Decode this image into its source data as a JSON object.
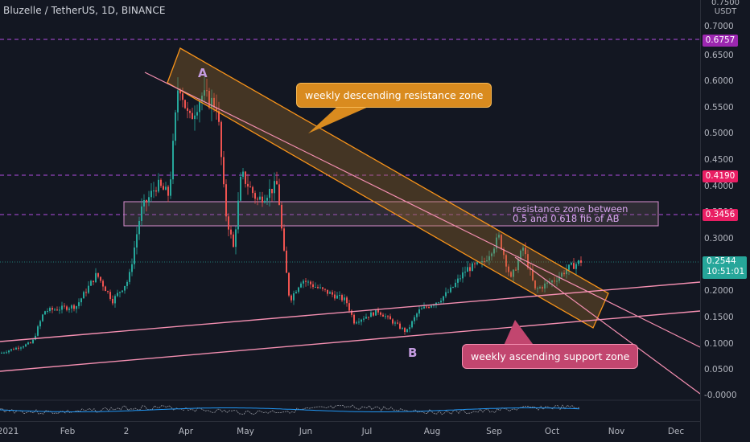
{
  "header": {
    "symbol": "Bluzelle / TetherUS, 1D, BINANCE"
  },
  "price_axis": {
    "unit_top": "0.7500",
    "unit_bottom": "USDT",
    "ticks": [
      "0.7000",
      "0.6500",
      "0.6000",
      "0.5500",
      "0.5000",
      "0.4500",
      "0.4000",
      "0.3500",
      "0.3000",
      "0.2500",
      "0.2000",
      "0.1500",
      "0.1000",
      "0.0500",
      "-0.0000"
    ]
  },
  "time_axis": {
    "ticks": [
      "2021",
      "Feb",
      "2",
      "Apr",
      "May",
      "Jun",
      "Jul",
      "Aug",
      "Sep",
      "Oct",
      "Nov",
      "Dec"
    ]
  },
  "levels": [
    {
      "label": "0.6757",
      "color": "#9c27b0"
    },
    {
      "label": "0.4190",
      "color": "#9c27b0"
    },
    {
      "label": "0.3456",
      "color": "#9c27b0"
    }
  ],
  "current_price": {
    "price": "0.2544",
    "countdown": "10:51:01",
    "color": "#26a69a"
  },
  "annotations": {
    "resistance_callout": "weekly descending resistance zone",
    "support_callout": "weekly ascending support zone",
    "fib_zone_line1": "resistance zone between",
    "fib_zone_line2": "0.5 and 0.618 fib of AB",
    "point_a": "A",
    "point_b": "B"
  },
  "colors": {
    "background": "#131722",
    "up_candle": "#26a69a",
    "down_candle": "#ef5350",
    "resistance_zone": "#f7931a",
    "support_line": "#f48fb1",
    "fib_level": "#9c27b0"
  }
}
